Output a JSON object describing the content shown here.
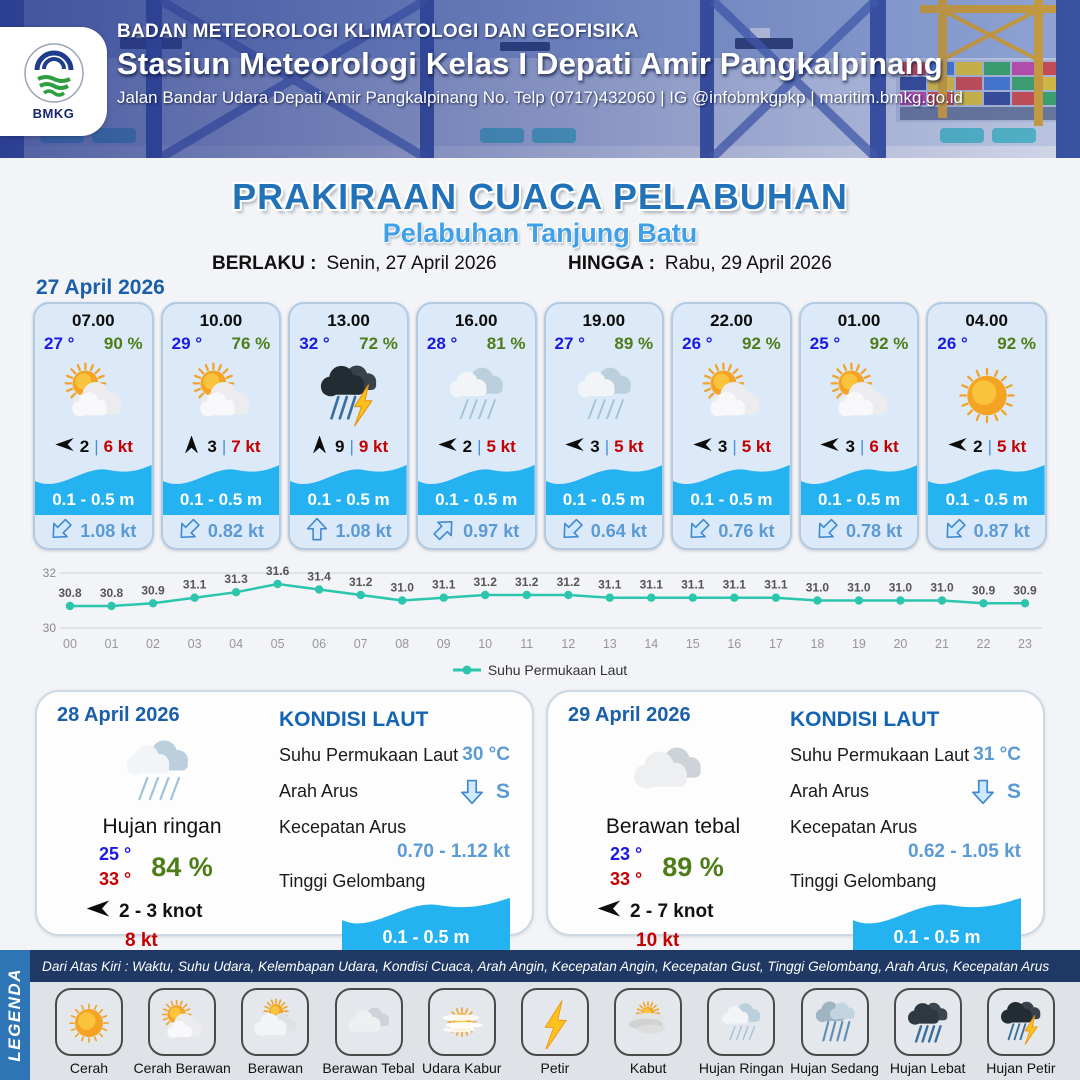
{
  "header": {
    "agency": "BADAN METEOROLOGI KLIMATOLOGI DAN GEOFISIKA",
    "station": "Stasiun Meteorologi Kelas I Depati Amir Pangkalpinang",
    "address": "Jalan Bandar Udara Depati Amir Pangkalpinang No. Telp (0717)432060 | IG @infobmkgpkp | maritim.bmkg.go.id",
    "logo_text": "BMKG"
  },
  "title": {
    "main": "PRAKIRAAN CUACA PELABUHAN",
    "subtitle": "Pelabuhan Tanjung Batu",
    "berlaku_label": "BERLAKU :",
    "berlaku_value": "Senin, 27 April 2026",
    "hingga_label": "HINGGA :",
    "hingga_value": "Rabu, 29 April 2026"
  },
  "forecast": {
    "date": "27 April 2026",
    "cards": [
      {
        "time": "07.00",
        "temp": "27 °",
        "humidity": "90 %",
        "icon": "cerah-berawan",
        "wind_dir": "left",
        "wind": "2",
        "gust": "6 kt",
        "wave": "0.1 - 0.5 m",
        "current_dir": "sw",
        "current": "1.08 kt"
      },
      {
        "time": "10.00",
        "temp": "29 °",
        "humidity": "76 %",
        "icon": "cerah-berawan",
        "wind_dir": "up",
        "wind": "3",
        "gust": "7 kt",
        "wave": "0.1 - 0.5 m",
        "current_dir": "sw",
        "current": "0.82 kt"
      },
      {
        "time": "13.00",
        "temp": "32 °",
        "humidity": "72 %",
        "icon": "hujan-petir",
        "wind_dir": "up",
        "wind": "9",
        "gust": "9 kt",
        "wave": "0.1 - 0.5 m",
        "current_dir": "up",
        "current": "1.08 kt"
      },
      {
        "time": "16.00",
        "temp": "28 °",
        "humidity": "81 %",
        "icon": "hujan-ringan",
        "wind_dir": "left",
        "wind": "2",
        "gust": "5 kt",
        "wave": "0.1 - 0.5 m",
        "current_dir": "ne",
        "current": "0.97 kt"
      },
      {
        "time": "19.00",
        "temp": "27 °",
        "humidity": "89 %",
        "icon": "hujan-ringan",
        "wind_dir": "left",
        "wind": "3",
        "gust": "5 kt",
        "wave": "0.1 - 0.5 m",
        "current_dir": "sw",
        "current": "0.64 kt"
      },
      {
        "time": "22.00",
        "temp": "26 °",
        "humidity": "92 %",
        "icon": "cerah-berawan",
        "wind_dir": "left",
        "wind": "3",
        "gust": "5 kt",
        "wave": "0.1 - 0.5 m",
        "current_dir": "sw",
        "current": "0.76 kt"
      },
      {
        "time": "01.00",
        "temp": "25 °",
        "humidity": "92 %",
        "icon": "cerah-berawan",
        "wind_dir": "left",
        "wind": "3",
        "gust": "6 kt",
        "wave": "0.1 - 0.5 m",
        "current_dir": "sw",
        "current": "0.78 kt"
      },
      {
        "time": "04.00",
        "temp": "26 °",
        "humidity": "92 %",
        "icon": "cerah",
        "wind_dir": "left",
        "wind": "2",
        "gust": "5 kt",
        "wave": "0.1 - 0.5 m",
        "current_dir": "sw",
        "current": "0.87 kt"
      }
    ]
  },
  "chart_data": {
    "type": "line",
    "series_name": "Suhu Permukaan Laut",
    "x": [
      "00",
      "01",
      "02",
      "03",
      "04",
      "05",
      "06",
      "07",
      "08",
      "09",
      "10",
      "11",
      "12",
      "13",
      "14",
      "15",
      "16",
      "17",
      "18",
      "19",
      "20",
      "21",
      "22",
      "23"
    ],
    "values": [
      30.8,
      30.8,
      30.9,
      31.1,
      31.3,
      31.6,
      31.4,
      31.2,
      31.0,
      31.1,
      31.2,
      31.2,
      31.2,
      31.1,
      31.1,
      31.1,
      31.1,
      31.1,
      31.0,
      31.0,
      31.0,
      31.0,
      30.9,
      30.9
    ],
    "ylim": [
      30,
      32
    ],
    "ytick_labels": [
      "30",
      "32"
    ],
    "grid": true,
    "legend_position": "bottom",
    "line_color": "#2cc5ad"
  },
  "day_panels": [
    {
      "date": "28 April 2026",
      "icon": "hujan-ringan",
      "condition": "Hujan ringan",
      "temp_min": "25 °",
      "temp_max": "33 °",
      "humidity": "84 %",
      "wind_range": "2  - 3 knot",
      "gust": "8 kt",
      "sea": {
        "heading": "KONDISI LAUT",
        "sst_label": "Suhu Permukaan Laut",
        "sst": "30 °C",
        "arah_label": "Arah Arus",
        "arah": "S",
        "kecepatan_label": "Kecepatan Arus",
        "kecepatan": "0.70  - 1.12 kt",
        "gelombang_label": "Tinggi Gelombang",
        "gelombang": "0.1 - 0.5 m"
      }
    },
    {
      "date": "29 April 2026",
      "icon": "berawan-tebal",
      "condition": "Berawan tebal",
      "temp_min": "23 °",
      "temp_max": "33 °",
      "humidity": "89 %",
      "wind_range": "2  - 7 knot",
      "gust": "10 kt",
      "sea": {
        "heading": "KONDISI LAUT",
        "sst_label": "Suhu Permukaan Laut",
        "sst": "31 °C",
        "arah_label": "Arah Arus",
        "arah": "S",
        "kecepatan_label": "Kecepatan Arus",
        "kecepatan": "0.62  - 1.05 kt",
        "gelombang_label": "Tinggi Gelombang",
        "gelombang": "0.1 - 0.5 m"
      }
    }
  ],
  "legend": {
    "strip": "LEGENDA",
    "note": "Dari Atas Kiri : Waktu, Suhu Udara, Kelembapan Udara, Kondisi Cuaca, Arah Angin, Kecepatan Angin, Kecepatan Gust, Tinggi Gelombang, Arah Arus, Kecepatan Arus",
    "items": [
      {
        "label": "Cerah",
        "icon": "cerah"
      },
      {
        "label": "Cerah Berawan",
        "icon": "cerah-berawan"
      },
      {
        "label": "Berawan",
        "icon": "berawan"
      },
      {
        "label": "Berawan Tebal",
        "icon": "berawan-tebal"
      },
      {
        "label": "Udara Kabur",
        "icon": "udara-kabur"
      },
      {
        "label": "Petir",
        "icon": "petir"
      },
      {
        "label": "Kabut",
        "icon": "kabut"
      },
      {
        "label": "Hujan Ringan",
        "icon": "hujan-ringan"
      },
      {
        "label": "Hujan Sedang",
        "icon": "hujan-sedang"
      },
      {
        "label": "Hujan Lebat",
        "icon": "hujan-lebat"
      },
      {
        "label": "Hujan Petir",
        "icon": "hujan-petir"
      }
    ]
  },
  "colors": {
    "title_blue": "#2272b9",
    "subtitle_blue": "#3fa0e8",
    "date_blue": "#1b5fa8",
    "temp_blue": "#1a1ae0",
    "humidity_green": "#4e7d18",
    "gust_red": "#c40000",
    "wave_blue": "#24b3f0",
    "current_blue": "#5b9bd5",
    "chart_line_teal": "#2cc5ad",
    "legend_bar_navy": "#203864",
    "legenda_strip_blue": "#2e75b6"
  }
}
